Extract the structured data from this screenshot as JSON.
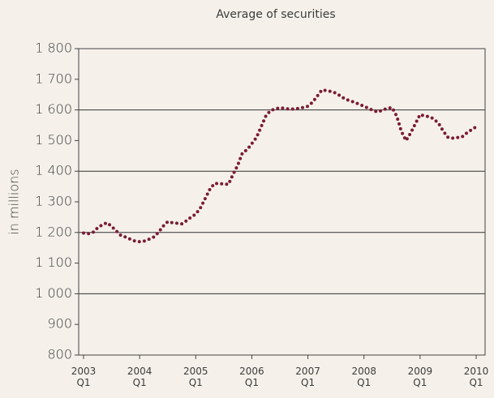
{
  "chart_data": {
    "type": "line",
    "title": "Average of securities",
    "y_label": "in millions",
    "categories": [
      "2003 Q1",
      null,
      null,
      null,
      null,
      null,
      null,
      null,
      null,
      null,
      null,
      null,
      "2004 Q1",
      null,
      null,
      null,
      null,
      null,
      null,
      null,
      null,
      null,
      null,
      null,
      "2005 Q1",
      null,
      null,
      null,
      null,
      null,
      null,
      null,
      null,
      null,
      null,
      null,
      "2006 Q1",
      null,
      null,
      null,
      null,
      null,
      null,
      null,
      null,
      null,
      null,
      null,
      "2007 Q1",
      null,
      null,
      null,
      null,
      null,
      null,
      null,
      null,
      null,
      null,
      null,
      "2008 Q1",
      null,
      null,
      null,
      null,
      null,
      null,
      null,
      null,
      null,
      null,
      null,
      "2009 Q1",
      null,
      null,
      null,
      null,
      null,
      null,
      null,
      null,
      null,
      null,
      null,
      "2010 Q1"
    ],
    "values": [
      1198,
      1196,
      1200,
      1215,
      1225,
      1232,
      1220,
      1205,
      1190,
      1185,
      1178,
      1172,
      1170,
      1172,
      1178,
      1185,
      1200,
      1220,
      1235,
      1232,
      1230,
      1228,
      1238,
      1250,
      1260,
      1280,
      1310,
      1340,
      1360,
      1360,
      1358,
      1357,
      1390,
      1420,
      1460,
      1470,
      1490,
      1510,
      1545,
      1580,
      1598,
      1603,
      1607,
      1605,
      1603,
      1603,
      1605,
      1608,
      1612,
      1625,
      1645,
      1665,
      1663,
      1660,
      1655,
      1645,
      1635,
      1630,
      1625,
      1618,
      1612,
      1605,
      1598,
      1593,
      1600,
      1605,
      1608,
      1580,
      1530,
      1500,
      1525,
      1555,
      1585,
      1580,
      1578,
      1570,
      1555,
      1530,
      1510,
      1508,
      1510,
      1512,
      1525,
      1535,
      1545
    ],
    "color": "#7b1b34",
    "ylim": [
      800,
      1800
    ],
    "yticks": [
      800,
      900,
      {
        "value": 1000,
        "label": "1 000"
      },
      {
        "value": 1100,
        "label": "1 100"
      },
      {
        "value": 1200,
        "label": "1 200"
      },
      {
        "value": 1300,
        "label": "1 300"
      },
      {
        "value": 1400,
        "label": "1 400"
      },
      {
        "value": 1500,
        "label": "1 500"
      },
      {
        "value": 1600,
        "label": "1 600"
      },
      {
        "value": 1700,
        "label": "1 700"
      },
      {
        "value": 1800,
        "label": "1 800"
      }
    ],
    "grid": true
  }
}
